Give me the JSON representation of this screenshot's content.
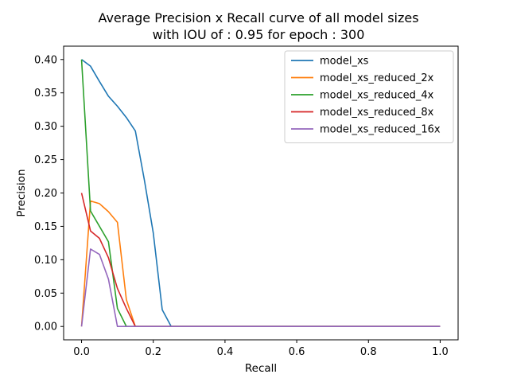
{
  "chart_data": {
    "type": "line",
    "title_line1": "Average Precision x Recall curve of all model sizes",
    "title_line2": "with IOU of : 0.95 for epoch : 300",
    "xlabel": "Recall",
    "ylabel": "Precision",
    "xlim": [
      -0.05,
      1.05
    ],
    "ylim": [
      -0.02,
      0.42
    ],
    "xticks": [
      0.0,
      0.2,
      0.4,
      0.6,
      0.8,
      1.0
    ],
    "xtick_labels": [
      "0.0",
      "0.2",
      "0.4",
      "0.6",
      "0.8",
      "1.0"
    ],
    "yticks": [
      0.0,
      0.05,
      0.1,
      0.15,
      0.2,
      0.25,
      0.3,
      0.35,
      0.4
    ],
    "ytick_labels": [
      "0.00",
      "0.05",
      "0.10",
      "0.15",
      "0.20",
      "0.25",
      "0.30",
      "0.35",
      "0.40"
    ],
    "grid": false,
    "legend_position": "top-right",
    "series": [
      {
        "name": "model_xs",
        "color": "#1f77b4",
        "x": [
          0.0,
          0.025,
          0.05,
          0.075,
          0.1,
          0.125,
          0.15,
          0.175,
          0.2,
          0.225,
          0.25,
          1.0
        ],
        "y": [
          0.4,
          0.39,
          0.367,
          0.345,
          0.33,
          0.313,
          0.293,
          0.22,
          0.14,
          0.025,
          0.0,
          0.0
        ]
      },
      {
        "name": "model_xs_reduced_2x",
        "color": "#ff7f0e",
        "x": [
          0.0,
          0.025,
          0.05,
          0.075,
          0.1,
          0.125,
          0.15,
          1.0
        ],
        "y": [
          0.0,
          0.188,
          0.184,
          0.172,
          0.156,
          0.04,
          0.0,
          0.0
        ]
      },
      {
        "name": "model_xs_reduced_4x",
        "color": "#2ca02c",
        "x": [
          0.0,
          0.025,
          0.05,
          0.075,
          0.1,
          0.125,
          1.0
        ],
        "y": [
          0.4,
          0.173,
          0.15,
          0.127,
          0.027,
          0.0,
          0.0
        ]
      },
      {
        "name": "model_xs_reduced_8x",
        "color": "#d62728",
        "x": [
          0.0,
          0.025,
          0.05,
          0.075,
          0.1,
          0.125,
          0.15,
          1.0
        ],
        "y": [
          0.2,
          0.143,
          0.132,
          0.103,
          0.057,
          0.027,
          0.0,
          0.0
        ]
      },
      {
        "name": "model_xs_reduced_16x",
        "color": "#9467bd",
        "x": [
          0.0,
          0.025,
          0.05,
          0.075,
          0.1,
          1.0
        ],
        "y": [
          0.0,
          0.116,
          0.108,
          0.071,
          0.0,
          0.0
        ]
      }
    ]
  }
}
